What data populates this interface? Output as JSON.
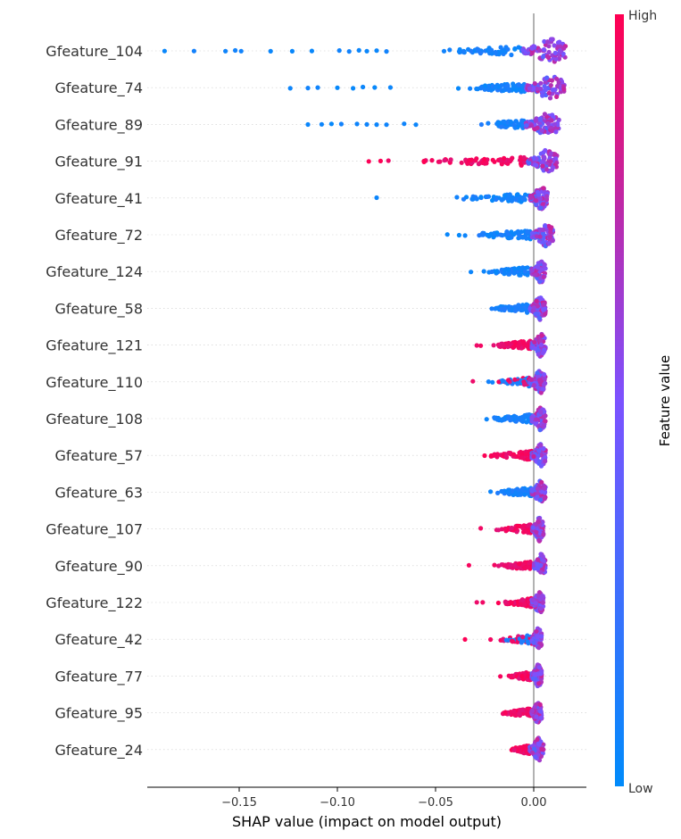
{
  "chart_data": {
    "type": "scatter",
    "subtype": "shap-beeswarm",
    "xlabel": "SHAP value (impact on model output)",
    "xlim": [
      -0.197,
      0.027
    ],
    "xticks": [
      -0.15,
      -0.1,
      -0.05,
      0.0
    ],
    "xtick_labels": [
      "−0.15",
      "−0.10",
      "−0.05",
      "0.00"
    ],
    "zero_line": 0.0,
    "grid": false,
    "features": [
      {
        "name": "Gfeature_104",
        "shap_range": [
          -0.188,
          0.017
        ],
        "dense_from": -0.048,
        "core": [
          -0.006,
          0.017
        ],
        "low_points": [
          -0.188,
          -0.173,
          -0.157,
          -0.152,
          -0.149,
          -0.134,
          -0.123,
          -0.113,
          -0.099,
          -0.094,
          -0.089,
          -0.085,
          -0.08,
          -0.075
        ],
        "high_points": [],
        "trend": "low-negative"
      },
      {
        "name": "Gfeature_74",
        "shap_range": [
          -0.124,
          0.016
        ],
        "dense_from": -0.04,
        "core": [
          -0.004,
          0.016
        ],
        "low_points": [
          -0.124,
          -0.115,
          -0.11,
          -0.1,
          -0.092,
          -0.087,
          -0.081,
          -0.073
        ],
        "high_points": [],
        "trend": "low-negative"
      },
      {
        "name": "Gfeature_89",
        "shap_range": [
          -0.115,
          0.013
        ],
        "dense_from": -0.028,
        "core": [
          -0.004,
          0.013
        ],
        "low_points": [
          -0.115,
          -0.108,
          -0.103,
          -0.098,
          -0.09,
          -0.085,
          -0.08,
          -0.075,
          -0.066,
          -0.06
        ],
        "high_points": [],
        "trend": "low-negative"
      },
      {
        "name": "Gfeature_91",
        "shap_range": [
          -0.084,
          0.012
        ],
        "dense_from": -0.06,
        "core": [
          -0.003,
          0.012
        ],
        "low_points": [],
        "high_points": [
          -0.084,
          -0.078,
          -0.074,
          -0.02,
          -0.015,
          -0.012
        ],
        "trend": "high-negative"
      },
      {
        "name": "Gfeature_41",
        "shap_range": [
          -0.08,
          0.007
        ],
        "dense_from": -0.04,
        "core": [
          -0.002,
          0.007
        ],
        "low_points": [
          -0.08
        ],
        "high_points": [],
        "trend": "low-negative"
      },
      {
        "name": "Gfeature_72",
        "shap_range": [
          -0.044,
          0.01
        ],
        "dense_from": -0.036,
        "core": [
          -0.001,
          0.01
        ],
        "low_points": [
          -0.044,
          -0.038
        ],
        "high_points": [],
        "trend": "low-negative"
      },
      {
        "name": "Gfeature_124",
        "shap_range": [
          -0.032,
          0.006
        ],
        "dense_from": -0.028,
        "core": [
          -0.001,
          0.006
        ],
        "low_points": [
          -0.032
        ],
        "high_points": [],
        "trend": "low-negative"
      },
      {
        "name": "Gfeature_58",
        "shap_range": [
          -0.022,
          0.006
        ],
        "dense_from": -0.022,
        "core": [
          -0.002,
          0.006
        ],
        "low_points": [],
        "high_points": [],
        "trend": "low-negative"
      },
      {
        "name": "Gfeature_121",
        "shap_range": [
          -0.029,
          0.006
        ],
        "dense_from": -0.022,
        "core": [
          -0.001,
          0.006
        ],
        "low_points": [],
        "high_points": [
          -0.029,
          -0.027
        ],
        "trend": "high-negative"
      },
      {
        "name": "Gfeature_110",
        "shap_range": [
          -0.031,
          0.006
        ],
        "dense_from": -0.018,
        "core": [
          -0.002,
          0.006
        ],
        "low_points": [
          -0.023,
          -0.021
        ],
        "high_points": [
          -0.031
        ],
        "trend": "mixed"
      },
      {
        "name": "Gfeature_108",
        "shap_range": [
          -0.024,
          0.006
        ],
        "dense_from": -0.022,
        "core": [
          -0.001,
          0.006
        ],
        "low_points": [
          -0.024
        ],
        "high_points": [],
        "trend": "low-negative"
      },
      {
        "name": "Gfeature_57",
        "shap_range": [
          -0.025,
          0.006
        ],
        "dense_from": -0.023,
        "core": [
          -0.001,
          0.006
        ],
        "low_points": [],
        "high_points": [
          -0.025
        ],
        "trend": "high-negative"
      },
      {
        "name": "Gfeature_63",
        "shap_range": [
          -0.022,
          0.006
        ],
        "dense_from": -0.02,
        "core": [
          -0.001,
          0.006
        ],
        "low_points": [
          -0.022
        ],
        "high_points": [],
        "trend": "low-negative"
      },
      {
        "name": "Gfeature_107",
        "shap_range": [
          -0.027,
          0.005
        ],
        "dense_from": -0.02,
        "core": [
          -0.001,
          0.005
        ],
        "low_points": [],
        "high_points": [
          -0.027
        ],
        "trend": "high-negative"
      },
      {
        "name": "Gfeature_90",
        "shap_range": [
          -0.033,
          0.006
        ],
        "dense_from": -0.018,
        "core": [
          0.0,
          0.006
        ],
        "low_points": [],
        "high_points": [
          -0.033,
          -0.02
        ],
        "trend": "high-negative"
      },
      {
        "name": "Gfeature_122",
        "shap_range": [
          -0.029,
          0.005
        ],
        "dense_from": -0.016,
        "core": [
          -0.001,
          0.005
        ],
        "low_points": [],
        "high_points": [
          -0.029,
          -0.026,
          -0.018
        ],
        "trend": "high-negative"
      },
      {
        "name": "Gfeature_42",
        "shap_range": [
          -0.035,
          0.004
        ],
        "dense_from": -0.018,
        "core": [
          -0.001,
          0.004
        ],
        "low_points": [],
        "high_points": [
          -0.035,
          -0.022
        ],
        "trend": "mixed"
      },
      {
        "name": "Gfeature_77",
        "shap_range": [
          -0.017,
          0.004
        ],
        "dense_from": -0.013,
        "core": [
          -0.001,
          0.004
        ],
        "low_points": [],
        "high_points": [
          -0.017
        ],
        "trend": "high-negative"
      },
      {
        "name": "Gfeature_95",
        "shap_range": [
          -0.017,
          0.004
        ],
        "dense_from": -0.016,
        "core": [
          -0.001,
          0.004
        ],
        "low_points": [],
        "high_points": [],
        "trend": "high-negative"
      },
      {
        "name": "Gfeature_24",
        "shap_range": [
          -0.013,
          0.005
        ],
        "dense_from": -0.012,
        "core": [
          -0.002,
          0.005
        ],
        "low_points": [],
        "high_points": [],
        "trend": "high-negative"
      }
    ],
    "colorbar": {
      "title": "Feature value",
      "high_label": "High",
      "low_label": "Low",
      "low_color": "#008bfb",
      "high_color": "#ff0052"
    }
  }
}
